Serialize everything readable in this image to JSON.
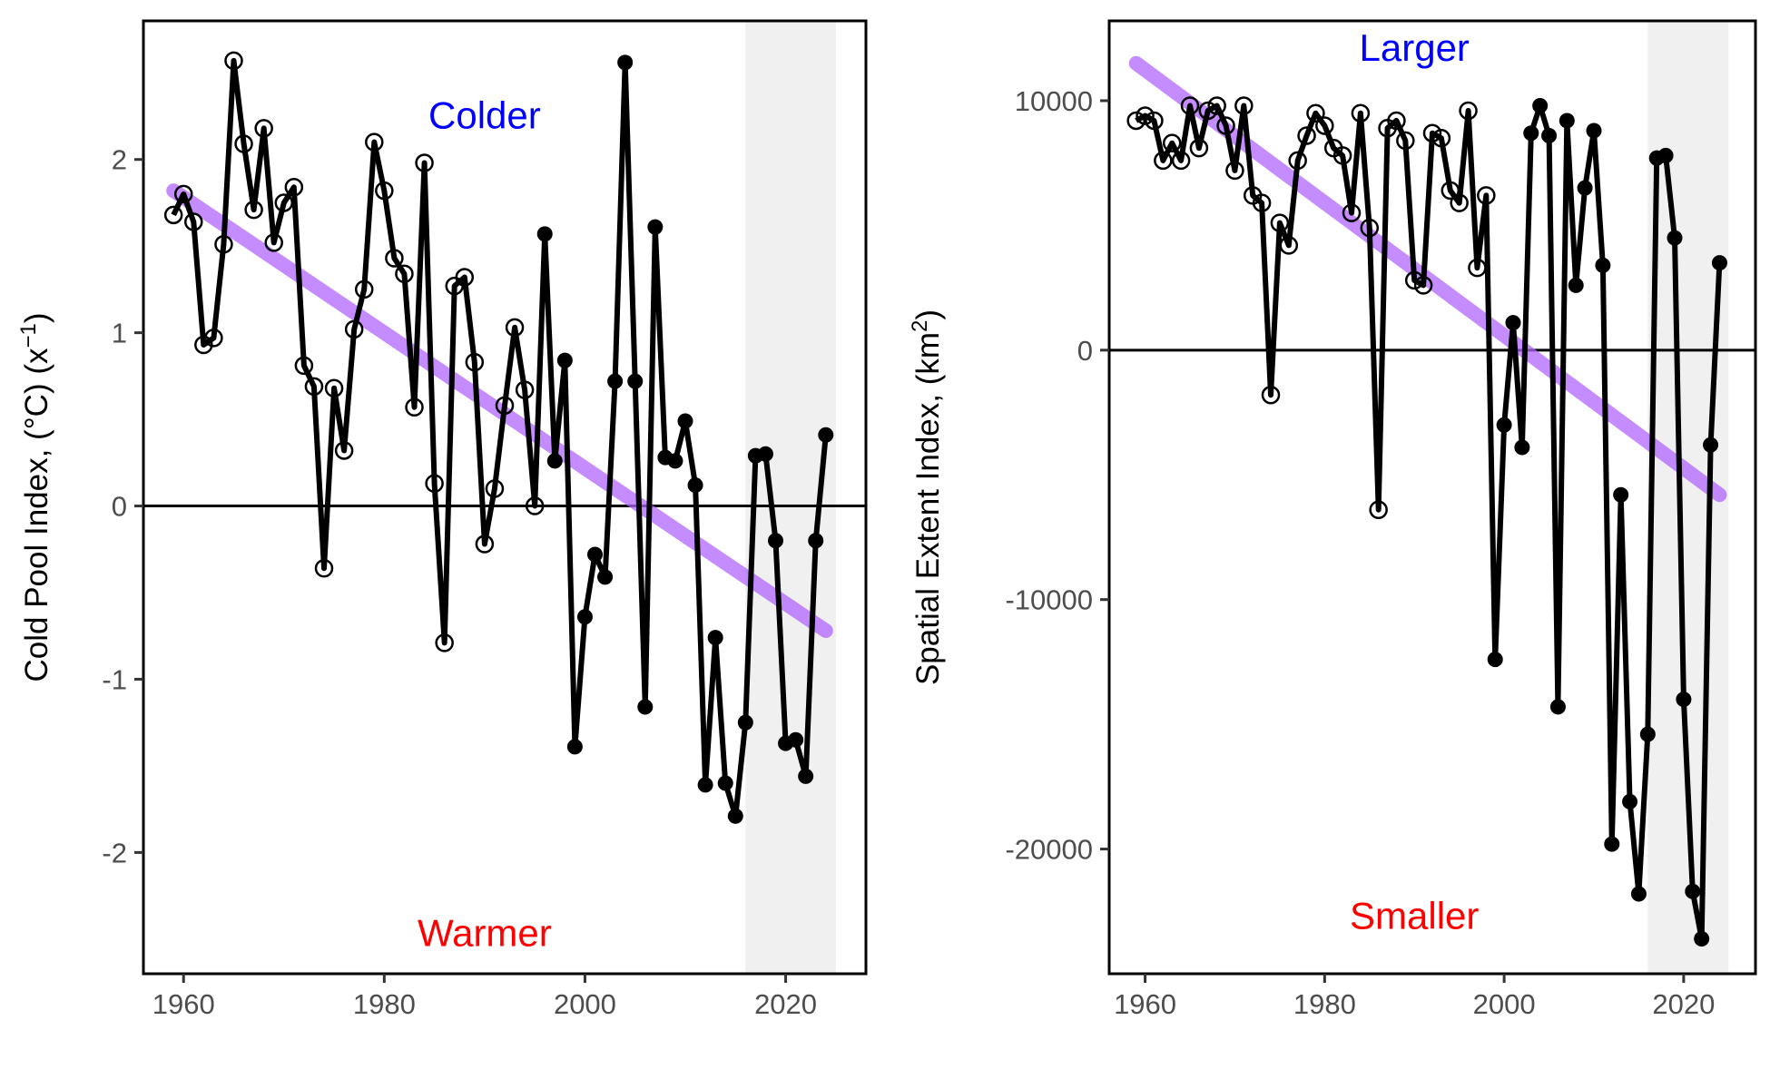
{
  "chart_data": [
    {
      "type": "line",
      "ylabel": "Cold Pool Index, (°C) (x",
      "ylabel_sup": "−1",
      "ylabel_tail": ")",
      "xlim": [
        1956,
        2028
      ],
      "ylim": [
        -2.7,
        2.8
      ],
      "xticks": [
        1960,
        1980,
        2000,
        2020
      ],
      "yticks": [
        -2,
        -1,
        0,
        1,
        2
      ],
      "ytick_labels": [
        "-2",
        "-1",
        "0",
        "1",
        "2"
      ],
      "shaded_x_range": [
        2016,
        2025
      ],
      "reference_line_y": 0,
      "grid": false,
      "annotations": [
        {
          "text": "Colder",
          "x": 1990,
          "y": 2.18,
          "color": "#0000ff"
        },
        {
          "text": "Warmer",
          "x": 1990,
          "y": -2.54,
          "color": "#ff0000"
        }
      ],
      "trend": {
        "x": [
          1959,
          2024
        ],
        "y": [
          1.82,
          -0.72
        ],
        "color": "#b266ff"
      },
      "series": [
        {
          "x": [
            1959,
            1960,
            1961,
            1962,
            1963,
            1964,
            1965,
            1966,
            1967,
            1968,
            1969,
            1970,
            1971,
            1972,
            1973,
            1974,
            1975,
            1976,
            1977,
            1978,
            1979,
            1980,
            1981,
            1982,
            1983,
            1984,
            1985,
            1986,
            1987,
            1988,
            1989,
            1990,
            1991,
            1992,
            1993,
            1994,
            1995,
            1996,
            1997,
            1998,
            1999,
            2000,
            2001,
            2002,
            2003,
            2004,
            2005,
            2006,
            2007,
            2008,
            2009,
            2010,
            2011,
            2012,
            2013,
            2014,
            2015,
            2016,
            2017,
            2018,
            2019,
            2020,
            2021,
            2022,
            2023,
            2024
          ],
          "y": [
            1.68,
            1.8,
            1.64,
            0.93,
            0.97,
            1.51,
            2.57,
            2.09,
            1.71,
            2.18,
            1.52,
            1.75,
            1.84,
            0.81,
            0.69,
            -0.36,
            0.68,
            0.32,
            1.02,
            1.25,
            2.1,
            1.82,
            1.43,
            1.34,
            0.57,
            1.98,
            0.13,
            -0.79,
            1.27,
            1.32,
            0.83,
            -0.22,
            0.1,
            0.58,
            1.03,
            0.67,
            0.0,
            1.57,
            0.26,
            0.84,
            -1.39,
            -0.64,
            -0.28,
            -0.41,
            0.72,
            2.56,
            0.72,
            -1.16,
            1.61,
            0.28,
            0.26,
            0.49,
            0.12,
            -1.61,
            -0.76,
            -1.6,
            -1.79,
            -1.25,
            0.29,
            0.3,
            -0.2,
            -1.37,
            -1.35,
            -1.56,
            -0.2,
            0.41
          ],
          "open_marker_until": 1995
        }
      ]
    },
    {
      "type": "line",
      "ylabel": "Spatial Extent Index,  (km",
      "ylabel_sup": "2",
      "ylabel_tail": ")",
      "xlim": [
        1956,
        2028
      ],
      "ylim": [
        -25000,
        13200
      ],
      "xticks": [
        1960,
        1980,
        2000,
        2020
      ],
      "yticks": [
        -20000,
        -10000,
        0,
        10000
      ],
      "ytick_labels": [
        "-20000",
        "-10000",
        "0",
        "10000"
      ],
      "shaded_x_range": [
        2016,
        2025
      ],
      "reference_line_y": 0,
      "grid": false,
      "annotations": [
        {
          "text": "Larger",
          "x": 1990,
          "y": 11600,
          "color": "#0000ff"
        },
        {
          "text": "Smaller",
          "x": 1990,
          "y": -23200,
          "color": "#ff0000"
        }
      ],
      "trend": {
        "x": [
          1959,
          2024
        ],
        "y": [
          11500,
          -5800
        ],
        "color": "#b266ff"
      },
      "series": [
        {
          "x": [
            1959,
            1960,
            1961,
            1962,
            1963,
            1964,
            1965,
            1966,
            1967,
            1968,
            1969,
            1970,
            1971,
            1972,
            1973,
            1974,
            1975,
            1976,
            1977,
            1978,
            1979,
            1980,
            1981,
            1982,
            1983,
            1984,
            1985,
            1986,
            1987,
            1988,
            1989,
            1990,
            1991,
            1992,
            1993,
            1994,
            1995,
            1996,
            1997,
            1998,
            1999,
            2000,
            2001,
            2002,
            2003,
            2004,
            2005,
            2006,
            2007,
            2008,
            2009,
            2010,
            2011,
            2012,
            2013,
            2014,
            2015,
            2016,
            2017,
            2018,
            2019,
            2020,
            2021,
            2022,
            2023,
            2024
          ],
          "y": [
            9200,
            9400,
            9200,
            7600,
            8300,
            7600,
            9800,
            8100,
            9600,
            9800,
            9000,
            7200,
            9800,
            6200,
            5900,
            -1800,
            5100,
            4200,
            7600,
            8600,
            9500,
            9000,
            8100,
            7800,
            5500,
            9500,
            4900,
            -6400,
            8900,
            9200,
            8400,
            2800,
            2600,
            8700,
            8500,
            6400,
            5900,
            9600,
            3300,
            6200,
            -12400,
            -3000,
            1100,
            -3900,
            8700,
            9800,
            8600,
            -14300,
            9200,
            2600,
            6500,
            8800,
            3400,
            -19800,
            -5800,
            -18100,
            -21800,
            -15400,
            7700,
            7800,
            4500,
            -14000,
            -21700,
            -23600,
            -3800,
            3500
          ],
          "open_marker_until": 1998
        }
      ]
    }
  ]
}
